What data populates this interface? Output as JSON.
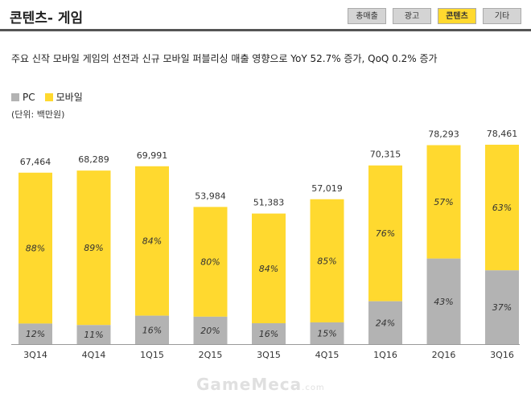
{
  "page": {
    "title": "콘텐츠- 게임"
  },
  "tabs": [
    {
      "label": "총매출",
      "active": false
    },
    {
      "label": "광고",
      "active": false
    },
    {
      "label": "콘텐츠",
      "active": true
    },
    {
      "label": "기타",
      "active": false
    }
  ],
  "summary": "주요 신작 모바일 게임의 선전과 신규 모바일 퍼블리싱 매출 영향으로 YoY 52.7% 증가, QoQ 0.2% 증가",
  "legend": {
    "pc": "PC",
    "mobile": "모바일"
  },
  "unit": "(단위: 백만원)",
  "colors": {
    "pc": "#b3b3b3",
    "mobile": "#ffd92f",
    "accent": "#ffd92f"
  },
  "watermark": {
    "main": "GameMeca",
    "suffix": ".com"
  },
  "chart_data": {
    "type": "bar",
    "stacked": true,
    "title": "콘텐츠- 게임",
    "unit": "백만원",
    "categories": [
      "3Q14",
      "4Q14",
      "1Q15",
      "2Q15",
      "3Q15",
      "4Q15",
      "1Q16",
      "2Q16",
      "3Q16"
    ],
    "totals": [
      67464,
      68289,
      69991,
      53984,
      51383,
      57019,
      70315,
      78293,
      78461
    ],
    "total_labels": [
      "67,464",
      "68,289",
      "69,991",
      "53,984",
      "51,383",
      "57,019",
      "70,315",
      "78,293",
      "78,461"
    ],
    "series": [
      {
        "name": "PC",
        "share_pct": [
          12,
          11,
          16,
          20,
          16,
          15,
          24,
          43,
          37
        ],
        "labels": [
          "12%",
          "11%",
          "16%",
          "20%",
          "16%",
          "15%",
          "24%",
          "43%",
          "37%"
        ]
      },
      {
        "name": "모바일",
        "share_pct": [
          88,
          89,
          84,
          80,
          84,
          85,
          76,
          57,
          63
        ],
        "labels": [
          "88%",
          "89%",
          "84%",
          "80%",
          "84%",
          "85%",
          "76%",
          "57%",
          "63%"
        ]
      }
    ]
  }
}
